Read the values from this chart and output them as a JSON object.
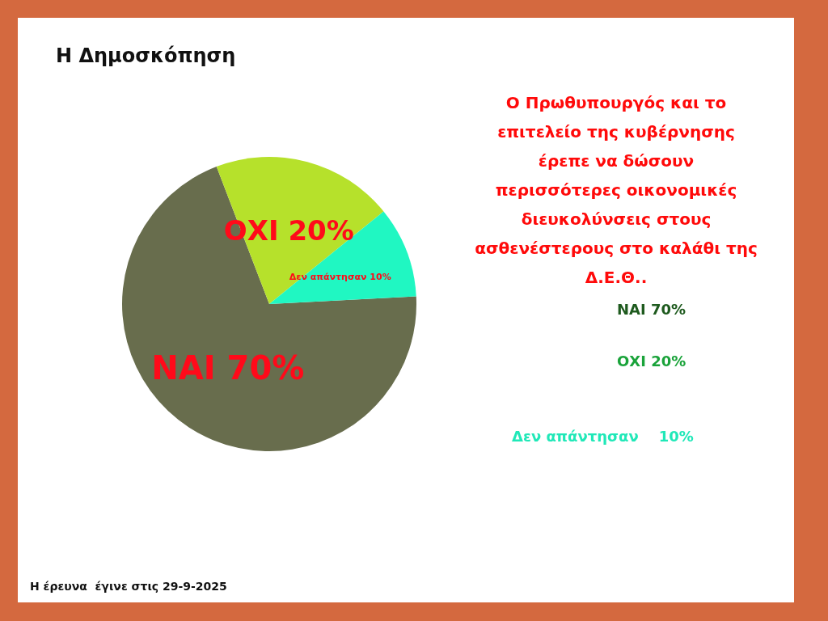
{
  "chart_data": {
    "type": "pie",
    "title": "Η Δημοσκόπηση",
    "subtitle": "Ο Πρωθυπουργός και το\nεπιτελείο της κυβέρνησης\nέρεπε να δώσουν\nπερισσότερες οικονομικές\nδιευκολύνσεις στους\nασθενέστερους στο καλάθι της\nΔ.Ε.Θ..",
    "categories": [
      "ΝΑΙ",
      "ΟΧΙ",
      "Δεν απάντησαν"
    ],
    "values": [
      70,
      20,
      10
    ],
    "value_labels": [
      "70%",
      "20%",
      "10%"
    ],
    "colors": [
      "#686d4d",
      "#b6e12b",
      "#20f7c2"
    ],
    "annotations": [
      "Η έρευνα  έγινε στις 29-9-2025"
    ]
  }
}
